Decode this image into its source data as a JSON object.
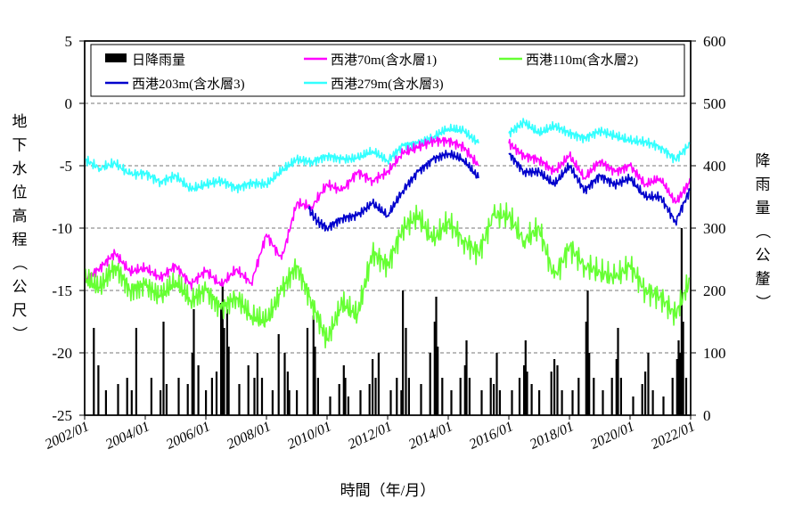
{
  "chart_data": {
    "type": "line",
    "xlabel": "時間（年/月）",
    "ylabel_left": "地下水位高程（公尺）",
    "ylabel_right": "降雨量（公釐）",
    "xlim": [
      2002.0,
      2022.0
    ],
    "ylim_left": [
      -25,
      5
    ],
    "ylim_right": [
      0,
      600
    ],
    "left_ticks": [
      "5",
      "0",
      "-5",
      "-10",
      "-15",
      "-20",
      "-25"
    ],
    "right_ticks": [
      "600",
      "500",
      "400",
      "300",
      "200",
      "100",
      "0"
    ],
    "x_ticks": [
      "2002/01",
      "2004/01",
      "2006/01",
      "2008/01",
      "2010/01",
      "2012/01",
      "2014/01",
      "2016/01",
      "2018/01",
      "2020/01",
      "2022/01"
    ],
    "grid": "horizontal dashed",
    "legend": "top",
    "colors": {
      "rain": "#000000",
      "w70": "#ff00ff",
      "w110": "#66ff33",
      "w203": "#0000cc",
      "w279": "#33ffff"
    },
    "series": [
      {
        "key": "w279",
        "name": "西港279m(含水層3)",
        "axis": "left",
        "x": [
          2002.0,
          2002.5,
          2003.0,
          2003.5,
          2004.0,
          2004.5,
          2005.0,
          2005.5,
          2006.0,
          2006.5,
          2007.0,
          2007.5,
          2008.0,
          2008.5,
          2009.0,
          2009.5,
          2010.0,
          2010.5,
          2011.0,
          2011.5,
          2012.0,
          2012.5,
          2013.0,
          2013.5,
          2014.0,
          2014.5,
          2015.0,
          2015.5,
          2016.0,
          2016.5,
          2017.0,
          2017.5,
          2018.0,
          2018.5,
          2019.0,
          2019.5,
          2020.0,
          2020.5,
          2021.0,
          2021.5,
          2022.0
        ],
        "values": [
          -4.5,
          -5.2,
          -4.8,
          -5.7,
          -5.6,
          -6.3,
          -5.8,
          -6.9,
          -6.5,
          -6.2,
          -6.8,
          -6.4,
          -6.5,
          -5.4,
          -4.5,
          -4.7,
          -4.2,
          -4.5,
          -4.4,
          -3.8,
          -4.6,
          -3.4,
          -3.2,
          -2.7,
          -2.0,
          -2.2,
          -3.2,
          null,
          -2.4,
          -1.5,
          -2.4,
          -1.8,
          -2.4,
          -2.8,
          -2.2,
          -2.6,
          -3.0,
          -3.1,
          -3.5,
          -4.5,
          -3.2
        ]
      },
      {
        "key": "w70",
        "name": "西港70m(含水層1)",
        "axis": "left",
        "x": [
          2002.0,
          2002.5,
          2003.0,
          2003.5,
          2004.0,
          2004.5,
          2005.0,
          2005.5,
          2006.0,
          2006.5,
          2007.0,
          2007.5,
          2008.0,
          2008.5,
          2009.0,
          2009.5,
          2010.0,
          2010.5,
          2011.0,
          2011.5,
          2012.0,
          2012.5,
          2013.0,
          2013.5,
          2014.0,
          2014.5,
          2015.0,
          2015.5,
          2016.0,
          2016.5,
          2017.0,
          2017.5,
          2018.0,
          2018.5,
          2019.0,
          2019.5,
          2020.0,
          2020.5,
          2021.0,
          2021.5,
          2022.0
        ],
        "values": [
          -14.2,
          -13.2,
          -12.0,
          -13.5,
          -13.2,
          -14.0,
          -13.0,
          -14.5,
          -13.4,
          -14.6,
          -13.3,
          -14.4,
          -10.5,
          -12.5,
          -8.0,
          -8.3,
          -6.5,
          -7.0,
          -5.5,
          -6.2,
          -5.5,
          -4.0,
          -3.5,
          -3.0,
          -3.0,
          -3.5,
          -5.0,
          null,
          -3.2,
          -4.2,
          -4.5,
          -5.5,
          -4.2,
          -6.0,
          -4.6,
          -5.5,
          -5.0,
          -6.5,
          -6.0,
          -8.0,
          -6.2
        ]
      },
      {
        "key": "w110",
        "name": "西港110m(含水層2)",
        "axis": "left",
        "x": [
          2002.0,
          2002.5,
          2003.0,
          2003.5,
          2004.0,
          2004.5,
          2005.0,
          2005.5,
          2006.0,
          2006.5,
          2007.0,
          2007.5,
          2008.0,
          2008.5,
          2009.0,
          2009.5,
          2010.0,
          2010.5,
          2011.0,
          2011.5,
          2012.0,
          2012.5,
          2013.0,
          2013.5,
          2014.0,
          2014.5,
          2015.0,
          2015.5,
          2016.0,
          2016.5,
          2017.0,
          2017.5,
          2018.0,
          2018.5,
          2019.0,
          2019.5,
          2020.0,
          2020.5,
          2021.0,
          2021.5,
          2022.0
        ],
        "values": [
          -14.0,
          -14.8,
          -13.0,
          -15.0,
          -14.6,
          -15.5,
          -14.2,
          -15.8,
          -15.0,
          -16.5,
          -15.5,
          -17.0,
          -17.5,
          -15.0,
          -13.0,
          -16.0,
          -19.0,
          -16.0,
          -17.0,
          -12.0,
          -13.0,
          -10.0,
          -9.0,
          -11.0,
          -9.5,
          -11.0,
          -12.0,
          -9.0,
          -9.0,
          -11.0,
          -10.0,
          -14.0,
          -11.5,
          -13.0,
          -13.5,
          -14.0,
          -13.0,
          -15.0,
          -15.5,
          -17.0,
          -14.0
        ]
      },
      {
        "key": "w203",
        "name": "西港203m(含水層3)",
        "axis": "left",
        "x": [
          2009.4,
          2009.7,
          2010.0,
          2010.5,
          2011.0,
          2011.5,
          2012.0,
          2012.5,
          2013.0,
          2013.5,
          2014.0,
          2014.5,
          2015.0,
          2015.5,
          2016.0,
          2016.5,
          2017.0,
          2017.5,
          2018.0,
          2018.5,
          2019.0,
          2019.5,
          2020.0,
          2020.5,
          2021.0,
          2021.5,
          2022.0
        ],
        "values": [
          -8.5,
          -9.5,
          -10.0,
          -9.2,
          -9.0,
          -8.0,
          -9.0,
          -7.0,
          -5.5,
          -4.5,
          -4.0,
          -4.5,
          -6.0,
          null,
          -4.0,
          -5.5,
          -5.5,
          -6.5,
          -5.0,
          -7.0,
          -5.8,
          -6.5,
          -6.0,
          -7.5,
          -7.5,
          -9.5,
          -6.8
        ]
      }
    ],
    "rainfall": {
      "name": "日降雨量",
      "axis": "right",
      "events": [
        [
          2002.3,
          140
        ],
        [
          2002.45,
          80
        ],
        [
          2002.7,
          40
        ],
        [
          2003.1,
          50
        ],
        [
          2003.4,
          60
        ],
        [
          2003.55,
          40
        ],
        [
          2003.7,
          140
        ],
        [
          2004.2,
          60
        ],
        [
          2004.5,
          40
        ],
        [
          2004.6,
          150
        ],
        [
          2004.7,
          50
        ],
        [
          2005.1,
          60
        ],
        [
          2005.4,
          50
        ],
        [
          2005.55,
          100
        ],
        [
          2005.6,
          170
        ],
        [
          2005.75,
          80
        ],
        [
          2006.0,
          40
        ],
        [
          2006.2,
          60
        ],
        [
          2006.35,
          70
        ],
        [
          2006.5,
          180
        ],
        [
          2006.55,
          210
        ],
        [
          2006.6,
          140
        ],
        [
          2006.7,
          170
        ],
        [
          2006.75,
          110
        ],
        [
          2007.1,
          50
        ],
        [
          2007.4,
          80
        ],
        [
          2007.6,
          60
        ],
        [
          2007.7,
          100
        ],
        [
          2007.85,
          60
        ],
        [
          2008.2,
          40
        ],
        [
          2008.4,
          130
        ],
        [
          2008.6,
          100
        ],
        [
          2008.7,
          70
        ],
        [
          2008.75,
          40
        ],
        [
          2009.0,
          40
        ],
        [
          2009.35,
          140
        ],
        [
          2009.55,
          160
        ],
        [
          2009.6,
          110
        ],
        [
          2009.7,
          60
        ],
        [
          2010.1,
          30
        ],
        [
          2010.4,
          50
        ],
        [
          2010.55,
          80
        ],
        [
          2010.6,
          60
        ],
        [
          2010.7,
          30
        ],
        [
          2011.1,
          40
        ],
        [
          2011.4,
          50
        ],
        [
          2011.5,
          90
        ],
        [
          2011.6,
          60
        ],
        [
          2011.7,
          100
        ],
        [
          2012.1,
          40
        ],
        [
          2012.3,
          60
        ],
        [
          2012.45,
          40
        ],
        [
          2012.5,
          200
        ],
        [
          2012.6,
          140
        ],
        [
          2012.7,
          60
        ],
        [
          2013.1,
          50
        ],
        [
          2013.4,
          100
        ],
        [
          2013.55,
          150
        ],
        [
          2013.6,
          190
        ],
        [
          2013.65,
          110
        ],
        [
          2013.8,
          60
        ],
        [
          2014.1,
          40
        ],
        [
          2014.4,
          60
        ],
        [
          2014.55,
          80
        ],
        [
          2014.6,
          120
        ],
        [
          2014.7,
          60
        ],
        [
          2015.1,
          40
        ],
        [
          2015.4,
          60
        ],
        [
          2015.5,
          50
        ],
        [
          2015.6,
          100
        ],
        [
          2015.7,
          40
        ],
        [
          2016.1,
          40
        ],
        [
          2016.35,
          60
        ],
        [
          2016.5,
          80
        ],
        [
          2016.55,
          120
        ],
        [
          2016.6,
          70
        ],
        [
          2016.75,
          50
        ],
        [
          2017.0,
          40
        ],
        [
          2017.4,
          70
        ],
        [
          2017.5,
          90
        ],
        [
          2017.6,
          80
        ],
        [
          2017.75,
          40
        ],
        [
          2018.1,
          40
        ],
        [
          2018.3,
          60
        ],
        [
          2018.55,
          150
        ],
        [
          2018.6,
          200
        ],
        [
          2018.65,
          100
        ],
        [
          2018.8,
          60
        ],
        [
          2019.1,
          40
        ],
        [
          2019.4,
          60
        ],
        [
          2019.55,
          90
        ],
        [
          2019.6,
          140
        ],
        [
          2019.7,
          60
        ],
        [
          2020.1,
          30
        ],
        [
          2020.4,
          50
        ],
        [
          2020.5,
          70
        ],
        [
          2020.6,
          100
        ],
        [
          2020.75,
          40
        ],
        [
          2021.1,
          30
        ],
        [
          2021.4,
          60
        ],
        [
          2021.55,
          90
        ],
        [
          2021.6,
          120
        ],
        [
          2021.65,
          100
        ],
        [
          2021.7,
          300
        ],
        [
          2021.75,
          150
        ],
        [
          2021.85,
          60
        ]
      ]
    }
  }
}
